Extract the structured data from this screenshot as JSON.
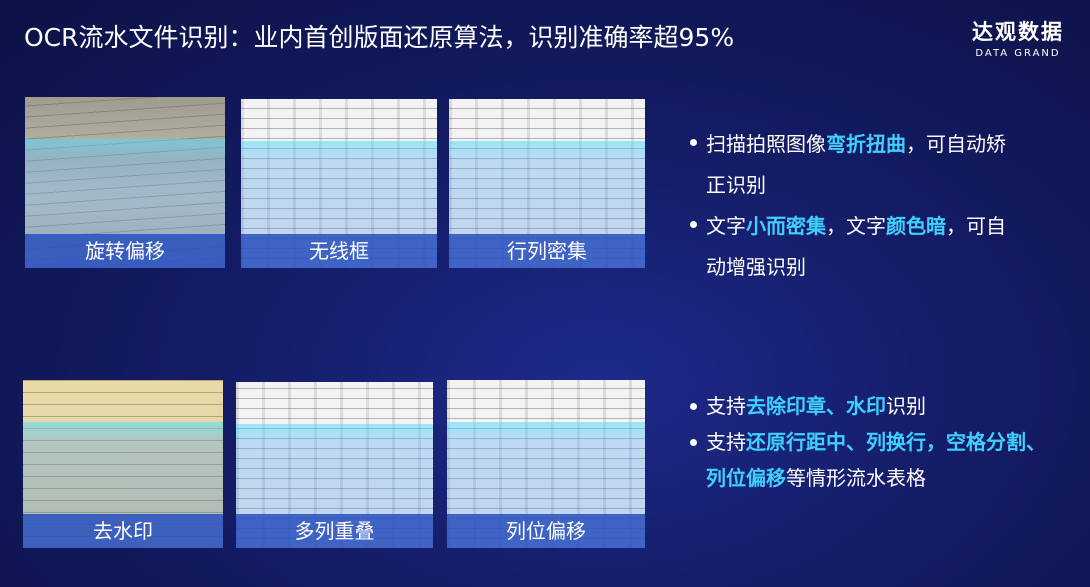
{
  "header": {
    "title": "OCR流水文件识别：业内首创版面还原算法，识别准确率超95%",
    "logo": {
      "name": "达观数据",
      "subtitle": "DATA GRAND"
    }
  },
  "sections": [
    {
      "cards": [
        "旋转偏移",
        "无线框",
        "行列密集"
      ],
      "bullets": [
        [
          {
            "text": "扫描拍照图像"
          },
          {
            "text": "弯折扭曲",
            "em": true
          },
          {
            "text": "，可自动矫正识别"
          }
        ],
        [
          {
            "text": "文字"
          },
          {
            "text": "小而密集",
            "em": true
          },
          {
            "text": "，文字"
          },
          {
            "text": "颜色暗",
            "em": true
          },
          {
            "text": "，可自动增强识别"
          }
        ]
      ]
    },
    {
      "cards": [
        "去水印",
        "多列重叠",
        "列位偏移"
      ],
      "bullets": [
        [
          {
            "text": "支持"
          },
          {
            "text": "去除印章、水印",
            "em": true
          },
          {
            "text": "识别"
          }
        ],
        [
          {
            "text": "支持"
          },
          {
            "text": "还原行距中、列换行，空格分割、列位偏移",
            "em": true
          },
          {
            "text": "等情形流水表格"
          }
        ]
      ]
    }
  ]
}
